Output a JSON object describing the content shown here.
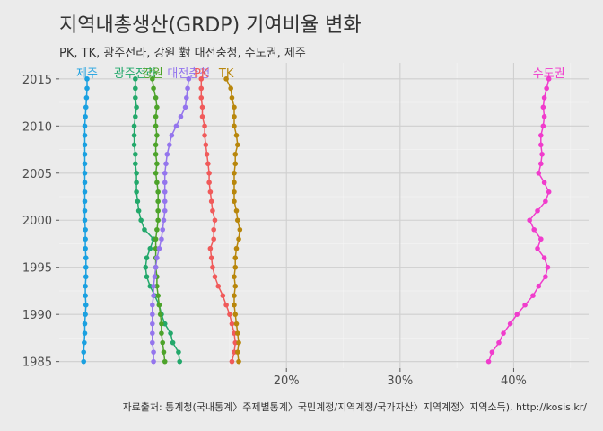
{
  "chart_data": {
    "type": "line",
    "title": "지역내총생산(GRDP) 기여비율 변화",
    "subtitle": "PK, TK, 광주전라, 강원 對 대전충청, 수도권, 제주",
    "caption": "자료출처: 통계청(국내통계〉주제별통계〉국민계정/지역계정/국가자산〉지역계정〉지역소득), http://kosis.kr/",
    "xlabel": "",
    "ylabel": "",
    "x_ticks": [
      {
        "value": 0.2,
        "label": "20%"
      },
      {
        "value": 0.3,
        "label": "30%"
      },
      {
        "value": 0.4,
        "label": "40%"
      }
    ],
    "y_ticks": [
      {
        "value": 1985,
        "label": "1985"
      },
      {
        "value": 1990,
        "label": "1990"
      },
      {
        "value": 1995,
        "label": "1995"
      },
      {
        "value": 2000,
        "label": "2000"
      },
      {
        "value": 2005,
        "label": "2005"
      },
      {
        "value": 2010,
        "label": "2010"
      },
      {
        "value": 2015,
        "label": "2015"
      }
    ],
    "xlim": [
      0.0,
      0.466
    ],
    "ylim": [
      1984.3,
      2016.7
    ],
    "grid": true,
    "years": [
      1985,
      1986,
      1987,
      1988,
      1989,
      1990,
      1991,
      1992,
      1993,
      1994,
      1995,
      1996,
      1997,
      1998,
      1999,
      2000,
      2001,
      2002,
      2003,
      2004,
      2005,
      2006,
      2007,
      2008,
      2009,
      2010,
      2011,
      2012,
      2013,
      2014,
      2015
    ],
    "series": [
      {
        "name": "제주",
        "color": "#1aa0e0",
        "values": [
          0.0215,
          0.0215,
          0.022,
          0.0225,
          0.0225,
          0.023,
          0.0235,
          0.023,
          0.023,
          0.0235,
          0.0235,
          0.0235,
          0.023,
          0.023,
          0.023,
          0.0225,
          0.0225,
          0.0225,
          0.0225,
          0.0225,
          0.0225,
          0.0225,
          0.0225,
          0.0225,
          0.0225,
          0.0225,
          0.023,
          0.0235,
          0.024,
          0.0245,
          0.0245
        ]
      },
      {
        "name": "광주전라",
        "color": "#23a86b",
        "values": [
          0.106,
          0.105,
          0.1,
          0.098,
          0.093,
          0.09,
          0.088,
          0.084,
          0.08,
          0.077,
          0.076,
          0.077,
          0.08,
          0.083,
          0.075,
          0.072,
          0.07,
          0.069,
          0.068,
          0.068,
          0.068,
          0.067,
          0.067,
          0.066,
          0.066,
          0.066,
          0.067,
          0.068,
          0.067,
          0.067,
          0.067
        ]
      },
      {
        "name": "강원",
        "color": "#4da32a",
        "values": [
          0.093,
          0.092,
          0.091,
          0.09,
          0.09,
          0.089,
          0.088,
          0.087,
          0.086,
          0.086,
          0.085,
          0.085,
          0.085,
          0.085,
          0.086,
          0.087,
          0.087,
          0.087,
          0.087,
          0.086,
          0.085,
          0.086,
          0.085,
          0.085,
          0.086,
          0.085,
          0.085,
          0.086,
          0.085,
          0.083,
          0.082
        ]
      },
      {
        "name": "대전충청",
        "color": "#9475ed",
        "values": [
          0.083,
          0.083,
          0.082,
          0.082,
          0.082,
          0.082,
          0.082,
          0.083,
          0.083,
          0.084,
          0.085,
          0.086,
          0.088,
          0.09,
          0.091,
          0.092,
          0.093,
          0.093,
          0.093,
          0.093,
          0.093,
          0.094,
          0.095,
          0.097,
          0.099,
          0.103,
          0.107,
          0.111,
          0.112,
          0.113,
          0.114
        ]
      },
      {
        "name": "PK",
        "color": "#f05a5a",
        "values": [
          0.152,
          0.154,
          0.155,
          0.154,
          0.152,
          0.15,
          0.147,
          0.144,
          0.14,
          0.137,
          0.135,
          0.134,
          0.133,
          0.136,
          0.136,
          0.137,
          0.135,
          0.134,
          0.133,
          0.132,
          0.132,
          0.131,
          0.13,
          0.129,
          0.128,
          0.128,
          0.126,
          0.126,
          0.125,
          0.125,
          0.125
        ]
      },
      {
        "name": "TK",
        "color": "#b8860b",
        "values": [
          0.158,
          0.157,
          0.158,
          0.157,
          0.156,
          0.155,
          0.154,
          0.154,
          0.155,
          0.154,
          0.155,
          0.155,
          0.156,
          0.158,
          0.159,
          0.157,
          0.156,
          0.154,
          0.154,
          0.154,
          0.154,
          0.155,
          0.155,
          0.157,
          0.156,
          0.154,
          0.154,
          0.154,
          0.152,
          0.151,
          0.147
        ]
      },
      {
        "name": "수도권",
        "color": "#f03ccc",
        "values": [
          0.378,
          0.381,
          0.387,
          0.391,
          0.397,
          0.403,
          0.41,
          0.417,
          0.422,
          0.428,
          0.43,
          0.427,
          0.421,
          0.424,
          0.418,
          0.414,
          0.421,
          0.428,
          0.431,
          0.427,
          0.422,
          0.424,
          0.425,
          0.424,
          0.424,
          0.426,
          0.427,
          0.426,
          0.427,
          0.429,
          0.431
        ]
      }
    ]
  }
}
